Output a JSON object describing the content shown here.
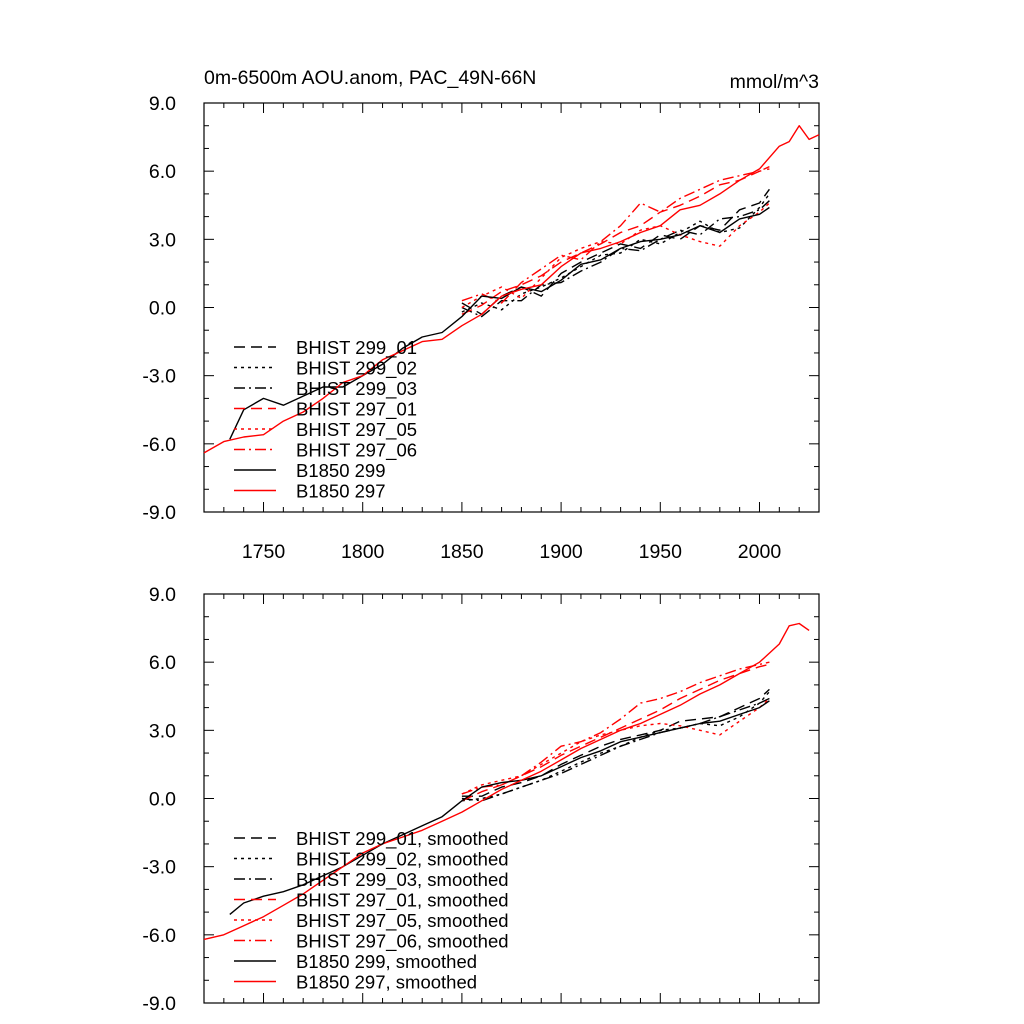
{
  "figure": {
    "title": "0m-6500m AOU.anom, PAC_49N-66N",
    "units": "mmol/m^3"
  },
  "chart_data": [
    {
      "type": "line",
      "title": "0m-6500m AOU.anom, PAC_49N-66N",
      "units_label": "mmol/m^3",
      "xlim": [
        1720,
        2030
      ],
      "ylim": [
        -9.0,
        9.0
      ],
      "xticks": [
        1750,
        1800,
        1850,
        1900,
        1950,
        2000
      ],
      "yticks": [
        -9.0,
        -6.0,
        -3.0,
        0.0,
        3.0,
        6.0,
        9.0
      ],
      "ytick_labels": [
        "-9.0",
        "-6.0",
        "-3.0",
        "0.0",
        "3.0",
        "6.0",
        "9.0"
      ],
      "grid": false,
      "legend_position": "bottom-left",
      "series": [
        {
          "name": "BHIST 299_01",
          "color": "#000000",
          "dash": "dash",
          "x": [
            1850,
            1860,
            1870,
            1880,
            1890,
            1900,
            1910,
            1920,
            1930,
            1940,
            1950,
            1960,
            1970,
            1980,
            1990,
            2000,
            2005
          ],
          "y": [
            0.2,
            -0.3,
            0.5,
            0.9,
            0.5,
            1.5,
            2.0,
            2.4,
            2.8,
            2.6,
            3.2,
            3.0,
            3.6,
            3.4,
            4.3,
            4.6,
            5.2
          ]
        },
        {
          "name": "BHIST 299_02",
          "color": "#000000",
          "dash": "dot",
          "x": [
            1850,
            1860,
            1870,
            1880,
            1890,
            1900,
            1910,
            1920,
            1930,
            1940,
            1950,
            1960,
            1970,
            1980,
            1990,
            2000,
            2005
          ],
          "y": [
            -0.2,
            0.2,
            -0.1,
            0.6,
            0.9,
            1.3,
            1.8,
            2.3,
            2.4,
            3.0,
            2.8,
            3.3,
            3.8,
            3.3,
            3.5,
            4.4,
            5.0
          ]
        },
        {
          "name": "BHIST 299_03",
          "color": "#000000",
          "dash": "dashdot",
          "x": [
            1850,
            1860,
            1870,
            1880,
            1890,
            1900,
            1910,
            1920,
            1930,
            1940,
            1950,
            1960,
            1970,
            1980,
            1990,
            2000,
            2005
          ],
          "y": [
            0.0,
            -0.4,
            0.3,
            0.3,
            1.0,
            1.1,
            1.6,
            2.0,
            2.6,
            2.5,
            3.0,
            3.4,
            3.2,
            3.9,
            4.0,
            4.3,
            4.7
          ]
        },
        {
          "name": "BHIST 297_01",
          "color": "#ff0000",
          "dash": "dash",
          "x": [
            1850,
            1860,
            1870,
            1880,
            1890,
            1900,
            1910,
            1920,
            1930,
            1940,
            1950,
            1960,
            1970,
            1980,
            1990,
            2000,
            2005
          ],
          "y": [
            -0.3,
            0.1,
            0.7,
            1.0,
            1.4,
            2.0,
            2.4,
            2.8,
            3.3,
            3.6,
            4.2,
            4.5,
            4.9,
            5.4,
            5.6,
            6.0,
            6.1
          ]
        },
        {
          "name": "BHIST 297_05",
          "color": "#ff0000",
          "dash": "dot",
          "x": [
            1850,
            1860,
            1870,
            1880,
            1890,
            1900,
            1910,
            1920,
            1930,
            1940,
            1950,
            1960,
            1970,
            1980,
            1990,
            2000,
            2005
          ],
          "y": [
            0.0,
            0.5,
            0.9,
            0.4,
            1.3,
            2.2,
            2.6,
            2.9,
            2.8,
            3.4,
            3.6,
            3.2,
            2.9,
            2.7,
            3.6,
            4.2,
            4.6
          ]
        },
        {
          "name": "BHIST 297_06",
          "color": "#ff0000",
          "dash": "dashdot",
          "x": [
            1850,
            1860,
            1870,
            1880,
            1890,
            1900,
            1910,
            1920,
            1930,
            1940,
            1950,
            1960,
            1970,
            1980,
            1990,
            2000,
            2005
          ],
          "y": [
            0.3,
            0.6,
            0.2,
            1.1,
            1.7,
            2.3,
            2.1,
            2.9,
            3.6,
            4.6,
            4.2,
            4.8,
            5.2,
            5.6,
            5.8,
            6.0,
            6.2
          ]
        },
        {
          "name": "B1850 299",
          "color": "#000000",
          "dash": "solid",
          "x": [
            1733,
            1740,
            1750,
            1760,
            1770,
            1780,
            1790,
            1800,
            1810,
            1820,
            1830,
            1840,
            1850,
            1860,
            1870,
            1880,
            1890,
            1900,
            1910,
            1920,
            1930,
            1940,
            1950,
            1960,
            1970,
            1980,
            1990,
            2000,
            2005
          ],
          "y": [
            -5.8,
            -4.5,
            -4.0,
            -4.3,
            -3.9,
            -3.5,
            -3.5,
            -3.0,
            -2.5,
            -1.8,
            -1.3,
            -1.1,
            -0.4,
            0.5,
            0.4,
            0.9,
            0.7,
            1.2,
            1.9,
            2.1,
            2.6,
            2.9,
            3.0,
            3.2,
            3.6,
            3.3,
            3.9,
            4.1,
            4.4
          ]
        },
        {
          "name": "B1850 297",
          "color": "#ff0000",
          "dash": "solid",
          "x": [
            1720,
            1730,
            1740,
            1750,
            1760,
            1770,
            1780,
            1790,
            1800,
            1810,
            1820,
            1830,
            1840,
            1850,
            1860,
            1870,
            1880,
            1890,
            1900,
            1910,
            1920,
            1930,
            1940,
            1950,
            1960,
            1970,
            1980,
            1990,
            2000,
            2010,
            2015,
            2020,
            2025,
            2030
          ],
          "y": [
            -6.4,
            -5.9,
            -5.7,
            -5.6,
            -5.0,
            -4.6,
            -4.0,
            -3.3,
            -3.0,
            -2.3,
            -1.9,
            -1.5,
            -1.4,
            -0.8,
            -0.3,
            0.5,
            0.8,
            1.0,
            1.8,
            2.4,
            2.6,
            2.9,
            3.3,
            3.6,
            4.3,
            4.5,
            5.0,
            5.6,
            6.1,
            7.1,
            7.3,
            8.0,
            7.4,
            7.6
          ]
        }
      ]
    },
    {
      "type": "line",
      "xlim": [
        1720,
        2030
      ],
      "ylim": [
        -9.0,
        9.0
      ],
      "xticks": [
        1750,
        1800,
        1850,
        1900,
        1950,
        2000
      ],
      "yticks": [
        -9.0,
        -6.0,
        -3.0,
        0.0,
        3.0,
        6.0,
        9.0
      ],
      "ytick_labels": [
        "-9.0",
        "-6.0",
        "-3.0",
        "0.0",
        "3.0",
        "6.0",
        "9.0"
      ],
      "grid": false,
      "legend_position": "bottom-left",
      "series": [
        {
          "name": "BHIST 299_01, smoothed",
          "color": "#000000",
          "dash": "dash",
          "x": [
            1850,
            1860,
            1870,
            1880,
            1890,
            1900,
            1910,
            1920,
            1930,
            1940,
            1950,
            1960,
            1970,
            1980,
            1990,
            2000,
            2005
          ],
          "y": [
            0.1,
            0.1,
            0.5,
            0.7,
            1.0,
            1.5,
            1.9,
            2.3,
            2.6,
            2.8,
            3.0,
            3.4,
            3.5,
            3.6,
            4.0,
            4.4,
            4.8
          ]
        },
        {
          "name": "BHIST 299_02, smoothed",
          "color": "#000000",
          "dash": "dot",
          "x": [
            1850,
            1860,
            1870,
            1880,
            1890,
            1900,
            1910,
            1920,
            1930,
            1940,
            1950,
            1960,
            1970,
            1980,
            1990,
            2000,
            2005
          ],
          "y": [
            -0.1,
            0.0,
            0.2,
            0.5,
            0.8,
            1.2,
            1.6,
            2.0,
            2.3,
            2.7,
            3.0,
            3.1,
            3.3,
            3.2,
            3.6,
            4.2,
            4.7
          ]
        },
        {
          "name": "BHIST 299_03, smoothed",
          "color": "#000000",
          "dash": "dashdot",
          "x": [
            1850,
            1860,
            1870,
            1880,
            1890,
            1900,
            1910,
            1920,
            1930,
            1940,
            1950,
            1960,
            1970,
            1980,
            1990,
            2000,
            2005
          ],
          "y": [
            0.0,
            -0.1,
            0.2,
            0.5,
            0.8,
            1.1,
            1.5,
            1.9,
            2.3,
            2.6,
            2.9,
            3.1,
            3.3,
            3.6,
            3.9,
            4.2,
            4.4
          ]
        },
        {
          "name": "BHIST 297_01, smoothed",
          "color": "#ff0000",
          "dash": "dash",
          "x": [
            1850,
            1860,
            1870,
            1880,
            1890,
            1900,
            1910,
            1920,
            1930,
            1940,
            1950,
            1960,
            1970,
            1980,
            1990,
            2000,
            2005
          ],
          "y": [
            -0.1,
            0.3,
            0.6,
            1.0,
            1.4,
            1.9,
            2.3,
            2.7,
            3.1,
            3.5,
            3.9,
            4.4,
            4.8,
            5.2,
            5.5,
            5.8,
            5.9
          ]
        },
        {
          "name": "BHIST 297_05, smoothed",
          "color": "#ff0000",
          "dash": "dot",
          "x": [
            1850,
            1860,
            1870,
            1880,
            1890,
            1900,
            1910,
            1920,
            1930,
            1940,
            1950,
            1960,
            1970,
            1980,
            1990,
            2000,
            2005
          ],
          "y": [
            0.2,
            0.6,
            0.8,
            1.0,
            1.5,
            2.0,
            2.5,
            2.8,
            3.0,
            3.2,
            3.3,
            3.2,
            3.0,
            2.8,
            3.4,
            4.0,
            4.4
          ]
        },
        {
          "name": "BHIST 297_06, smoothed",
          "color": "#ff0000",
          "dash": "dashdot",
          "x": [
            1850,
            1860,
            1870,
            1880,
            1890,
            1900,
            1910,
            1920,
            1930,
            1940,
            1950,
            1960,
            1970,
            1980,
            1990,
            2000,
            2005
          ],
          "y": [
            0.2,
            0.5,
            0.6,
            1.0,
            1.6,
            2.3,
            2.5,
            2.9,
            3.5,
            4.2,
            4.4,
            4.7,
            5.1,
            5.4,
            5.7,
            5.9,
            6.0
          ]
        },
        {
          "name": "B1850 299, smoothed",
          "color": "#000000",
          "dash": "solid",
          "x": [
            1733,
            1740,
            1750,
            1760,
            1770,
            1780,
            1790,
            1800,
            1810,
            1820,
            1830,
            1840,
            1850,
            1860,
            1870,
            1880,
            1890,
            1900,
            1910,
            1920,
            1930,
            1940,
            1950,
            1960,
            1970,
            1980,
            1990,
            2000,
            2005
          ],
          "y": [
            -5.1,
            -4.6,
            -4.3,
            -4.1,
            -3.8,
            -3.4,
            -3.0,
            -2.5,
            -2.0,
            -1.6,
            -1.2,
            -0.8,
            -0.1,
            0.5,
            0.7,
            0.8,
            1.0,
            1.4,
            1.8,
            2.1,
            2.5,
            2.7,
            2.9,
            3.1,
            3.3,
            3.4,
            3.7,
            4.0,
            4.3
          ]
        },
        {
          "name": "B1850 297, smoothed",
          "color": "#ff0000",
          "dash": "solid",
          "x": [
            1720,
            1730,
            1740,
            1750,
            1760,
            1770,
            1780,
            1790,
            1800,
            1810,
            1820,
            1830,
            1840,
            1850,
            1860,
            1870,
            1880,
            1890,
            1900,
            1910,
            1920,
            1930,
            1940,
            1950,
            1960,
            1970,
            1980,
            1990,
            2000,
            2010,
            2015,
            2020,
            2025
          ],
          "y": [
            -6.2,
            -6.0,
            -5.6,
            -5.2,
            -4.7,
            -4.2,
            -3.6,
            -3.0,
            -2.4,
            -2.0,
            -1.7,
            -1.4,
            -1.0,
            -0.6,
            -0.1,
            0.4,
            0.8,
            1.2,
            1.7,
            2.2,
            2.6,
            3.0,
            3.3,
            3.7,
            4.1,
            4.6,
            5.0,
            5.5,
            6.0,
            6.8,
            7.6,
            7.7,
            7.4
          ]
        }
      ]
    }
  ]
}
